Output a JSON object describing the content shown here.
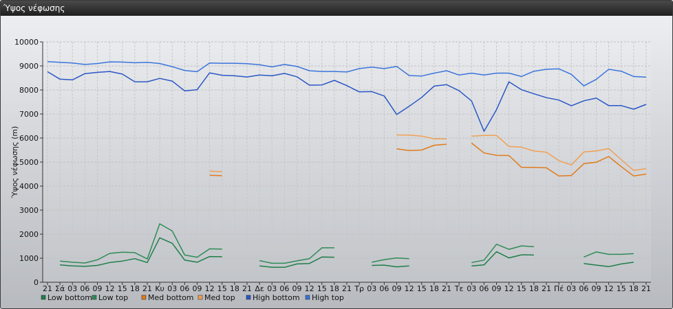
{
  "window": {
    "title": "Ύψος νέφωσης"
  },
  "chart_data": {
    "type": "line",
    "title": "",
    "ylabel": "Ύψος νέφωσης (m)",
    "ylim": [
      0,
      10000
    ],
    "yticks": [
      0,
      1000,
      2000,
      3000,
      4000,
      5000,
      6000,
      7000,
      8000,
      9000,
      10000
    ],
    "grid": true,
    "legend_position": "bottom-left",
    "x_labels": [
      "21",
      "Σά",
      "03",
      "06",
      "09",
      "12",
      "15",
      "18",
      "21",
      "Κυ",
      "03",
      "06",
      "09",
      "12",
      "15",
      "18",
      "21",
      "Δε",
      "03",
      "06",
      "09",
      "12",
      "15",
      "18",
      "21",
      "Τρ",
      "03",
      "06",
      "09",
      "12",
      "15",
      "18",
      "21",
      "Τε",
      "03",
      "06",
      "09",
      "12",
      "15",
      "18",
      "21",
      "Πέ",
      "03",
      "06",
      "09",
      "12",
      "15",
      "18",
      "21"
    ],
    "series": [
      {
        "name": "Low bottom",
        "color": "#1e7e4a",
        "values": [
          null,
          720,
          680,
          660,
          700,
          820,
          880,
          980,
          820,
          1850,
          1620,
          920,
          830,
          1070,
          1060,
          null,
          null,
          680,
          620,
          620,
          760,
          780,
          1050,
          1040,
          null,
          null,
          700,
          710,
          640,
          680,
          null,
          null,
          null,
          null,
          680,
          720,
          1270,
          1010,
          1140,
          1130,
          null,
          null,
          null,
          780,
          710,
          650,
          760,
          830,
          null
        ]
      },
      {
        "name": "Low top",
        "color": "#2e8b57",
        "values": [
          null,
          880,
          830,
          800,
          930,
          1200,
          1250,
          1230,
          970,
          2430,
          2130,
          1130,
          1040,
          1390,
          1380,
          null,
          null,
          900,
          790,
          790,
          890,
          980,
          1430,
          1430,
          null,
          null,
          830,
          940,
          1010,
          980,
          null,
          null,
          null,
          null,
          820,
          920,
          1580,
          1370,
          1510,
          1480,
          null,
          null,
          null,
          1050,
          1260,
          1160,
          1160,
          1190,
          null
        ]
      },
      {
        "name": "Med bottom",
        "color": "#e07b1a",
        "values": [
          null,
          null,
          null,
          null,
          null,
          null,
          null,
          null,
          null,
          null,
          null,
          null,
          null,
          4450,
          4430,
          null,
          null,
          null,
          null,
          null,
          null,
          null,
          null,
          null,
          null,
          null,
          null,
          null,
          5550,
          5480,
          5500,
          5700,
          5740,
          null,
          5790,
          5380,
          5280,
          5270,
          4780,
          4780,
          4760,
          4420,
          4440,
          4930,
          4990,
          5230,
          4810,
          4420,
          4500
        ]
      },
      {
        "name": "Med top",
        "color": "#f0a050",
        "values": [
          null,
          null,
          null,
          null,
          null,
          null,
          null,
          null,
          null,
          null,
          null,
          null,
          null,
          4620,
          4600,
          null,
          null,
          null,
          null,
          null,
          null,
          null,
          null,
          null,
          null,
          null,
          null,
          null,
          6130,
          6120,
          6080,
          5970,
          5960,
          null,
          6080,
          6110,
          6110,
          5650,
          5620,
          5460,
          5410,
          5060,
          4880,
          5420,
          5460,
          5560,
          5100,
          4650,
          4730
        ]
      },
      {
        "name": "High bottom",
        "color": "#2a56c6",
        "values": [
          8760,
          8450,
          8420,
          8680,
          8730,
          8770,
          8660,
          8340,
          8340,
          8480,
          8370,
          7960,
          8010,
          8710,
          8610,
          8590,
          8540,
          8620,
          8590,
          8690,
          8550,
          8200,
          8210,
          8400,
          8180,
          7920,
          7930,
          7750,
          6980,
          7320,
          7690,
          8160,
          8220,
          7970,
          7540,
          6280,
          7180,
          8340,
          8010,
          7840,
          7680,
          7580,
          7340,
          7550,
          7660,
          7350,
          7350,
          7200,
          7400
        ]
      },
      {
        "name": "High top",
        "color": "#3a74dc",
        "values": [
          9180,
          9150,
          9120,
          9060,
          9100,
          9170,
          9160,
          9130,
          9150,
          9100,
          8970,
          8810,
          8760,
          9120,
          9110,
          9110,
          9090,
          9050,
          8960,
          9060,
          8980,
          8800,
          8770,
          8770,
          8750,
          8890,
          8950,
          8890,
          8980,
          8600,
          8580,
          8700,
          8800,
          8620,
          8700,
          8620,
          8700,
          8700,
          8560,
          8780,
          8860,
          8880,
          8650,
          8170,
          8440,
          8860,
          8780,
          8560,
          8530
        ]
      }
    ]
  }
}
